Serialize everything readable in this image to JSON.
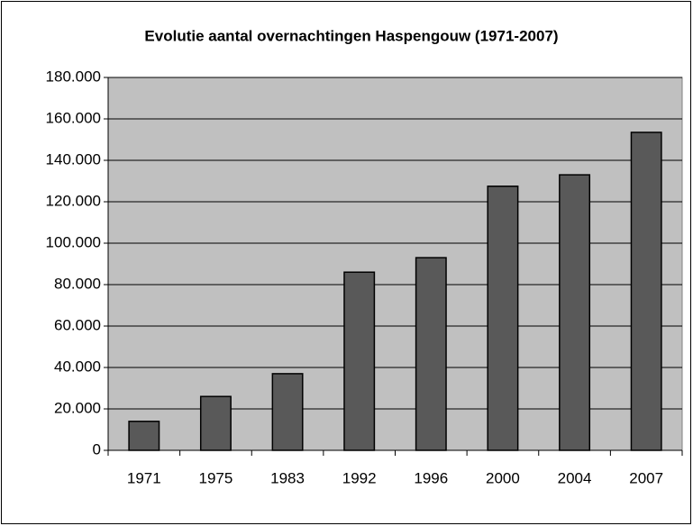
{
  "chart_data": {
    "type": "bar",
    "title": "Evolutie aantal overnachtingen Haspengouw (1971-2007)",
    "categories": [
      "1971",
      "1975",
      "1983",
      "1992",
      "1996",
      "2000",
      "2004",
      "2007"
    ],
    "values": [
      14000,
      26000,
      37000,
      86000,
      93000,
      127500,
      133000,
      153500
    ],
    "color": "#595959",
    "ylim": [
      0,
      180000
    ],
    "yticks": [
      0,
      {
        "value": 20000,
        "label": "20.000"
      },
      {
        "value": 40000,
        "label": "40.000"
      },
      {
        "value": 60000,
        "label": "60.000"
      },
      {
        "value": 80000,
        "label": "80.000"
      },
      {
        "value": 100000,
        "label": "100.000"
      },
      {
        "value": 120000,
        "label": "120.000"
      },
      {
        "value": 140000,
        "label": "140.000"
      },
      {
        "value": 160000,
        "label": "160.000"
      },
      {
        "value": 180000,
        "label": "180.000"
      }
    ],
    "grid": true
  }
}
